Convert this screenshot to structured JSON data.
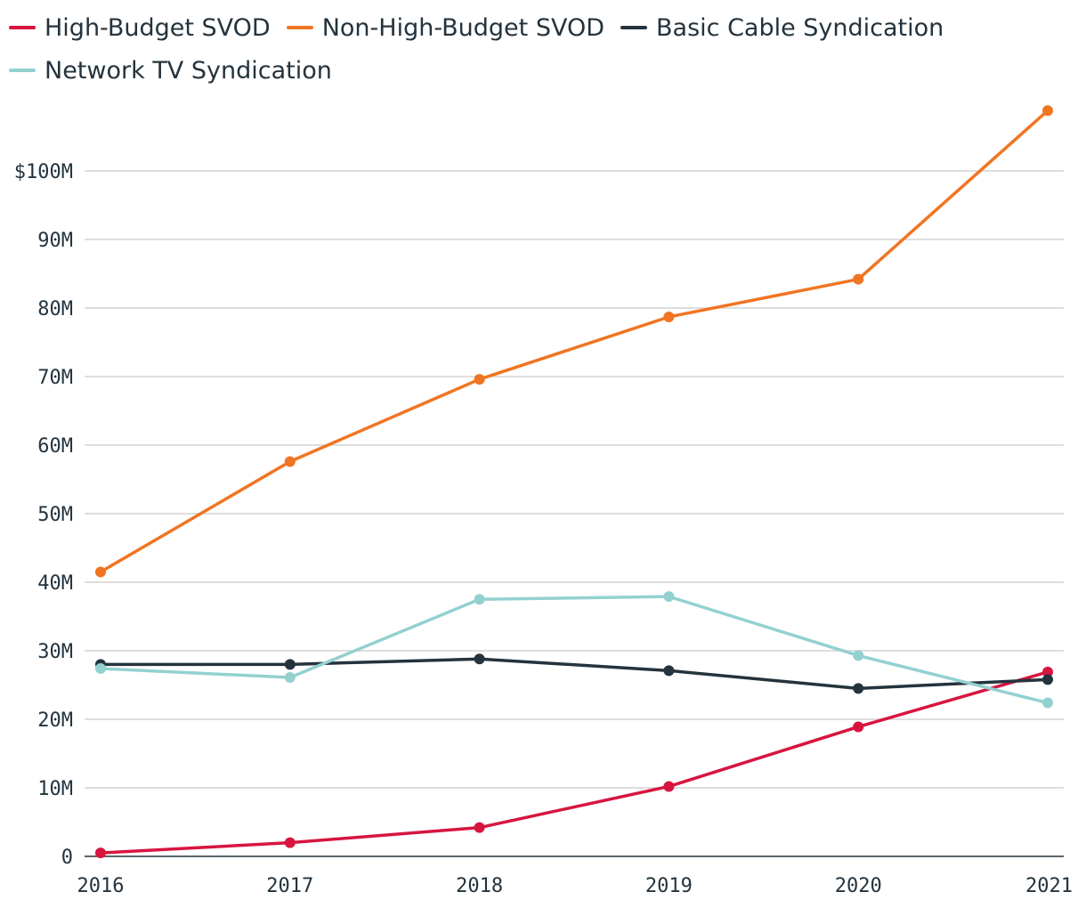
{
  "chart_data": {
    "type": "line",
    "title": "",
    "xlabel": "",
    "ylabel": "",
    "categories": [
      "2016",
      "2017",
      "2018",
      "2019",
      "2020",
      "2021"
    ],
    "series": [
      {
        "name": "High-Budget SVOD",
        "color": "#d7153f",
        "values": [
          0.5,
          2.0,
          4.2,
          10.2,
          18.9,
          26.9
        ]
      },
      {
        "name": "Non-High-Budget SVOD",
        "color": "#f07522",
        "values": [
          41.5,
          57.6,
          69.6,
          78.7,
          84.2,
          108.8
        ]
      },
      {
        "name": "Basic Cable Syndication",
        "color": "#24333d",
        "values": [
          28.0,
          28.0,
          28.8,
          27.1,
          24.5,
          25.8
        ]
      },
      {
        "name": "Network TV Syndication",
        "color": "#93d1d0",
        "values": [
          27.4,
          26.1,
          37.5,
          37.9,
          29.3,
          22.4
        ]
      }
    ],
    "ylim": [
      0,
      110
    ],
    "yticks": [
      0,
      10,
      20,
      30,
      40,
      50,
      60,
      70,
      80,
      90,
      100
    ],
    "ytick_labels": [
      "0",
      "10M",
      "20M",
      "30M",
      "40M",
      "50M",
      "60M",
      "70M",
      "80M",
      "90M",
      "$100M"
    ],
    "grid": true,
    "legend_position": "top-left"
  }
}
